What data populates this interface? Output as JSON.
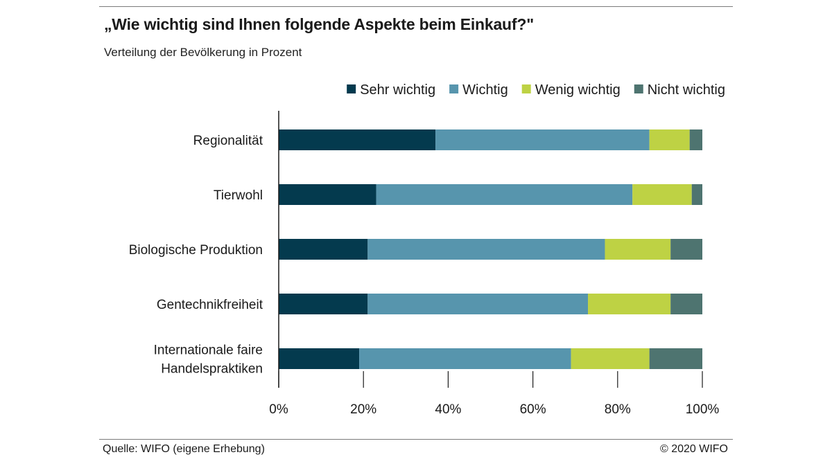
{
  "header": {
    "title": "„Wie wichtig sind Ihnen folgende Aspekte beim Einkauf?\"",
    "subtitle": "Verteilung der Bevölkerung in Prozent"
  },
  "footer": {
    "source": "Quelle: WIFO (eigene Erhebung)",
    "copyright": "© 2020 WIFO"
  },
  "chart_data": {
    "type": "bar",
    "orientation": "horizontal",
    "stacked": "percent",
    "legend_position": "top-right",
    "grid": false,
    "xlim": [
      0,
      100
    ],
    "x_ticks": [
      "0%",
      "20%",
      "40%",
      "60%",
      "80%",
      "100%"
    ],
    "categories": [
      [
        "Regionalität"
      ],
      [
        "Tierwohl"
      ],
      [
        "Biologische Produktion"
      ],
      [
        "Gentechnikfreiheit"
      ],
      [
        "Internationale faire",
        "Handelspraktiken"
      ]
    ],
    "series": [
      {
        "name": "Sehr wichtig",
        "color": "#043a4e",
        "values": [
          37,
          23,
          21,
          21,
          19
        ]
      },
      {
        "name": "Wichtig",
        "color": "#5795ad",
        "values": [
          50.5,
          60.5,
          56,
          52,
          50
        ]
      },
      {
        "name": "Wenig wichtig",
        "color": "#bed244",
        "values": [
          9.5,
          14,
          15.5,
          19.5,
          18.5
        ]
      },
      {
        "name": "Nicht wichtig",
        "color": "#4e7470",
        "values": [
          3,
          2.5,
          7.5,
          7.5,
          12.5
        ]
      }
    ]
  }
}
